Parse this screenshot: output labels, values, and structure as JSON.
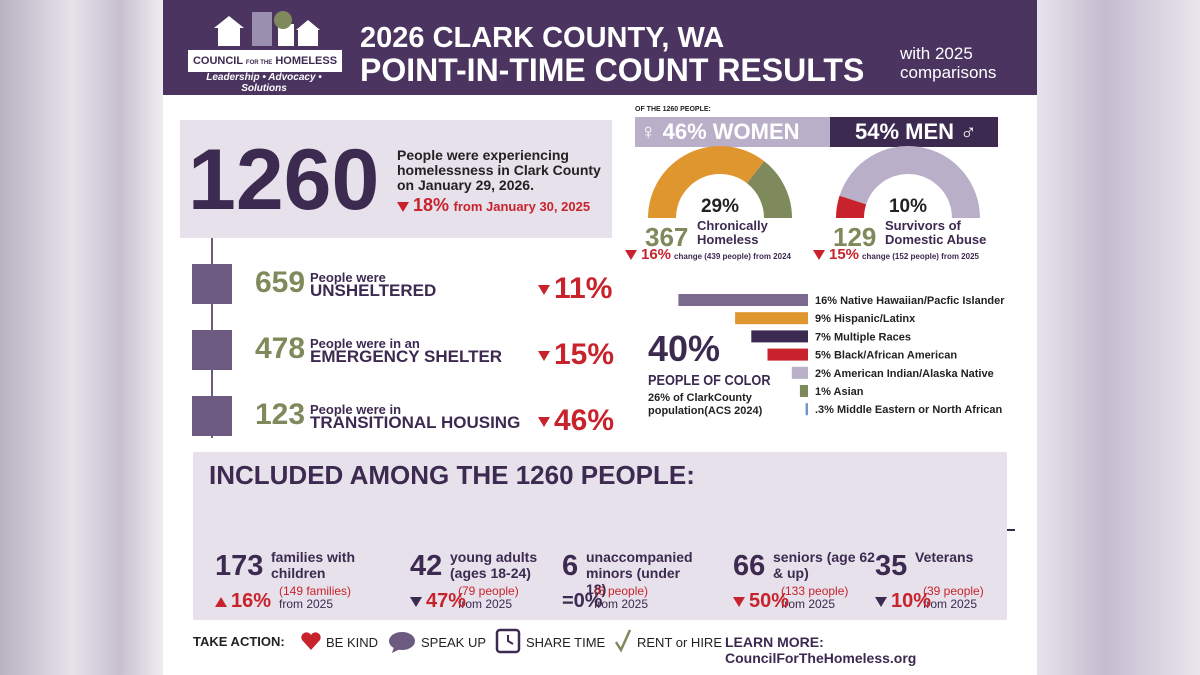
{
  "header": {
    "logo_line1": "COUNCIL",
    "logo_line2": "FOR THE",
    "logo_line3": "HOMELESS",
    "logo_tagline": "Leadership • Advocacy • Solutions",
    "title_line1": "2026 CLARK COUNTY, WA",
    "title_line2": "POINT-IN-TIME COUNT RESULTS",
    "subtitle": "with 2025 comparisons"
  },
  "total": {
    "number": "1260",
    "description": "People were experiencing homelessness in Clark County on January 29, 2026.",
    "change": "18%",
    "change_note": "from January 30, 2025"
  },
  "shelter": [
    {
      "number": "659",
      "label_small": "People were",
      "label_big": "UNSHELTERED",
      "change": "11%"
    },
    {
      "number": "478",
      "label_small": "People were in an",
      "label_big": "EMERGENCY SHELTER",
      "change": "15%"
    },
    {
      "number": "123",
      "label_small": "People were in",
      "label_big": "TRANSITIONAL HOUSING",
      "change": "46%"
    }
  ],
  "gender": {
    "heading": "OF THE 1260 PEOPLE:",
    "women": "♀ 46% WOMEN",
    "men": "54% MEN ♂"
  },
  "gauges": [
    {
      "percent_label": "29%",
      "value": 29,
      "color": "#7e8a5b",
      "rest_color": "#e0962e",
      "highlight_side": "end",
      "number": "367",
      "label": "Chronically Homeless",
      "change": "16%",
      "note": "change (439 people) from 2024"
    },
    {
      "percent_label": "10%",
      "value": 10,
      "color": "#c8232c",
      "rest_color": "#b9afc8",
      "highlight_side": "start",
      "number": "129",
      "label": "Survivors of Domestic Abuse",
      "change": "15%",
      "note": "change (152 people) from 2025"
    }
  ],
  "people_of_color": {
    "percent": "40%",
    "label": "PEOPLE OF COLOR",
    "note": "26% of ClarkCounty population(ACS 2024)"
  },
  "race": [
    {
      "label": "16% Native Hawaiian/Pacfic Islander",
      "value": 16,
      "color": "#7b6b8f"
    },
    {
      "label": "9% Hispanic/Latinx",
      "value": 9,
      "color": "#e0962e"
    },
    {
      "label": "7% Multiple Races",
      "value": 7,
      "color": "#3d2a50"
    },
    {
      "label": "5% Black/African American",
      "value": 5,
      "color": "#c8232c"
    },
    {
      "label": "2% American Indian/Alaska Native",
      "value": 2,
      "color": "#b9afc8"
    },
    {
      "label": "1% Asian",
      "value": 1,
      "color": "#7e8a5b"
    },
    {
      "label": ".3% Middle Eastern or North African",
      "value": 0.3,
      "color": "#6f96c8"
    }
  ],
  "included": {
    "heading": "INCLUDED AMONG THE 1260 PEOPLE:",
    "groups": [
      {
        "number": "173",
        "label": "families with children",
        "prior": "(149 families)",
        "since": "from 2025",
        "change": "16%",
        "direction": "up"
      },
      {
        "number": "42",
        "label": "young adults (ages 18-24)",
        "prior": "(79 people)",
        "since": "from 2025",
        "change": "47%",
        "direction": "down"
      },
      {
        "number": "6",
        "label": "unaccompanied minors (under 18)",
        "prior": "(6  people)",
        "since": "from 2025",
        "change": "=0%",
        "direction": "none"
      },
      {
        "number": "66",
        "label": "seniors (age 62 & up)",
        "prior": "(133 people)",
        "since": "from 2025",
        "change": "50%",
        "direction": "down"
      },
      {
        "number": "35",
        "label": "Veterans",
        "prior": "(39 people)",
        "since": "from 2025",
        "change": "10%",
        "direction": "down"
      }
    ]
  },
  "footer": {
    "take_action": "TAKE ACTION:",
    "actions": [
      "BE KIND",
      "SPEAK UP",
      "SHARE TIME",
      "RENT or HIRE"
    ],
    "learn_more": "LEARN MORE: CouncilForTheHomeless.org"
  }
}
